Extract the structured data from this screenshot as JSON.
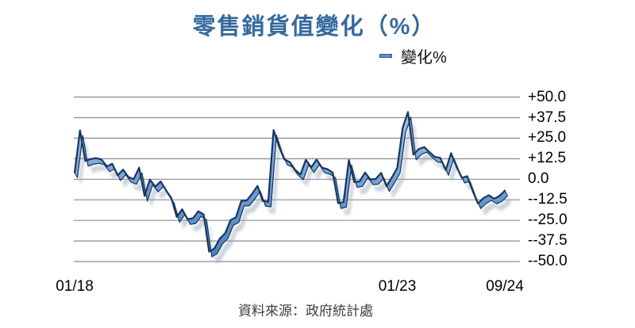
{
  "title": "零售銷貨值變化（%）",
  "legend": {
    "label": "變化%"
  },
  "source": "資料來源：政府統計處",
  "colors": {
    "title_text": "#35699E",
    "legend_marker_fill": "#5E8FCB",
    "legend_marker_border": "#2E5B94",
    "gridline": "#8C8C8C",
    "ribbon_edge": "#17375E",
    "ribbon_face_light": "#A3C4EC",
    "ribbon_face_mid": "#6F9BD2",
    "ribbon_face_dark": "#4F81BD",
    "axis_text": "#000000",
    "source_text": "#3D3D3D"
  },
  "chart_data": {
    "type": "line",
    "style": "3d-ribbon",
    "title": "零售銷貨值變化（%）",
    "series_name": "變化%",
    "xlabel": "",
    "ylabel": "",
    "ylim": [
      -50,
      50
    ],
    "grid": true,
    "legend_position": "top-right",
    "y_axis_side": "right",
    "y_ticks": [
      {
        "label": "+50.0",
        "value": 50
      },
      {
        "label": "+37.5",
        "value": 37.5
      },
      {
        "label": "+25.0",
        "value": 25
      },
      {
        "label": "+12.5",
        "value": 12.5
      },
      {
        "label": "0.0",
        "value": 0
      },
      {
        "label": "--12.5",
        "value": -12.5
      },
      {
        "label": "--25.0",
        "value": -25
      },
      {
        "label": "--37.5",
        "value": -37.5
      },
      {
        "label": "--50.0",
        "value": -50
      }
    ],
    "x_ticks": [
      {
        "label": "01/18",
        "month_index": 0
      },
      {
        "label": "01/23",
        "month_index": 60
      },
      {
        "label": "09/24",
        "month_index": 80
      }
    ],
    "x": [
      "01/18",
      "02/18",
      "03/18",
      "04/18",
      "05/18",
      "06/18",
      "07/18",
      "08/18",
      "09/18",
      "10/18",
      "11/18",
      "12/18",
      "01/19",
      "02/19",
      "03/19",
      "04/19",
      "05/19",
      "06/19",
      "07/19",
      "08/19",
      "09/19",
      "10/19",
      "11/19",
      "12/19",
      "01/20",
      "02/20",
      "03/20",
      "04/20",
      "05/20",
      "06/20",
      "07/20",
      "08/20",
      "09/20",
      "10/20",
      "11/20",
      "12/20",
      "01/21",
      "02/21",
      "03/21",
      "04/21",
      "05/21",
      "06/21",
      "07/21",
      "08/21",
      "09/21",
      "10/21",
      "11/21",
      "12/21",
      "01/22",
      "02/22",
      "03/22",
      "04/22",
      "05/22",
      "06/22",
      "07/22",
      "08/22",
      "09/22",
      "10/22",
      "11/22",
      "12/22",
      "01/23",
      "02/23",
      "03/23",
      "04/23",
      "05/23",
      "06/23",
      "07/23",
      "08/23",
      "09/23",
      "10/23",
      "11/23",
      "12/23",
      "01/24",
      "02/24",
      "03/24",
      "04/24",
      "05/24",
      "06/24",
      "07/24",
      "08/24",
      "09/24"
    ],
    "values": [
      4.1,
      29.8,
      11.2,
      12.3,
      12.9,
      12.0,
      7.8,
      9.5,
      2.4,
      5.9,
      1.4,
      0.1,
      7.1,
      -10.1,
      -0.2,
      -4.5,
      -1.3,
      -6.7,
      -11.4,
      -23.0,
      -18.2,
      -24.3,
      -23.7,
      -19.4,
      -21.4,
      -44.0,
      -42.1,
      -36.1,
      -32.8,
      -24.8,
      -23.1,
      -13.1,
      -12.9,
      -8.8,
      -4.0,
      -13.2,
      -13.6,
      30.0,
      20.1,
      12.1,
      10.5,
      5.8,
      2.9,
      11.9,
      7.3,
      12.0,
      7.1,
      6.2,
      4.1,
      -14.6,
      -13.8,
      11.7,
      -1.7,
      -1.2,
      4.1,
      -0.1,
      0.2,
      3.9,
      -4.2,
      1.1,
      7.0,
      31.3,
      40.9,
      15.0,
      18.4,
      19.6,
      16.5,
      13.7,
      13.0,
      5.6,
      15.9,
      7.8,
      0.9,
      1.9,
      -7.0,
      -14.7,
      -11.5,
      -9.7,
      -11.8,
      -10.1,
      -6.9
    ]
  }
}
